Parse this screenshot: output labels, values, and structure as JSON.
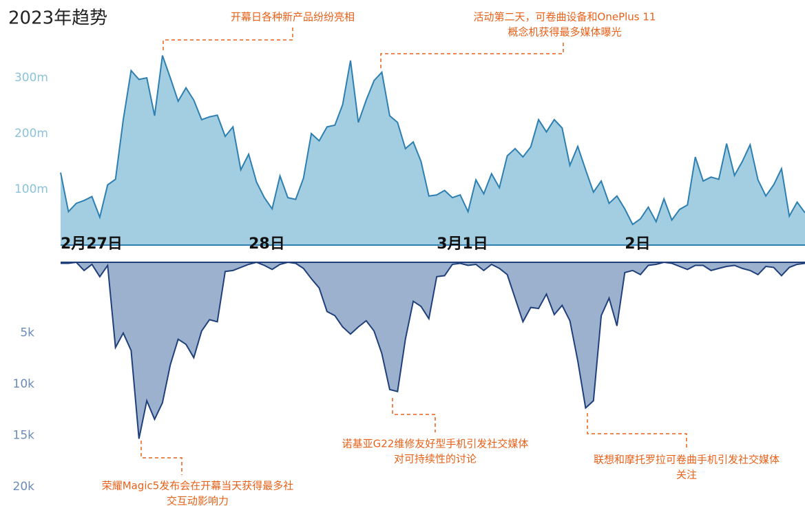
{
  "title": "2023年趋势",
  "chart_data": [
    {
      "type": "area",
      "color": "#a3cde0",
      "line_color": "#2c7fb0",
      "tick_color": "#8cc2da",
      "xlim": [
        0,
        95
      ],
      "xticks": [
        {
          "value": 0,
          "label": "2月27日"
        },
        {
          "value": 24,
          "label": "28日"
        },
        {
          "value": 48,
          "label": "3月1日"
        },
        {
          "value": 72,
          "label": "2日"
        }
      ],
      "ylim": [
        0,
        400
      ],
      "yticks": [
        {
          "value": 100,
          "label": "100m"
        },
        {
          "value": 200,
          "label": "200m"
        },
        {
          "value": 300,
          "label": "300m"
        }
      ],
      "values": [
        130,
        60,
        75,
        80,
        87,
        50,
        108,
        118,
        225,
        313,
        297,
        300,
        232,
        340,
        300,
        258,
        282,
        260,
        225,
        230,
        233,
        195,
        212,
        135,
        163,
        113,
        85,
        65,
        124,
        85,
        82,
        120,
        200,
        187,
        212,
        215,
        252,
        331,
        220,
        260,
        295,
        310,
        232,
        220,
        173,
        185,
        150,
        88,
        90,
        98,
        85,
        90,
        60,
        117,
        92,
        128,
        103,
        160,
        173,
        158,
        176,
        225,
        203,
        225,
        210,
        143,
        177,
        135,
        95,
        115,
        75,
        88,
        65,
        37,
        47,
        68,
        42,
        83,
        45,
        64,
        72,
        158,
        115,
        122,
        118,
        182,
        125,
        150,
        180,
        117,
        88,
        108,
        137,
        52,
        77,
        58
      ]
    },
    {
      "type": "area",
      "inverted": true,
      "color": "#9cb1cd",
      "line_color": "#1f3f7a",
      "tick_color": "#6b8bb9",
      "xlim": [
        0,
        95
      ],
      "ylim": [
        0,
        22
      ],
      "yticks": [
        {
          "value": 5,
          "label": "5k"
        },
        {
          "value": 10,
          "label": "10k"
        },
        {
          "value": 15,
          "label": "15k"
        },
        {
          "value": 20,
          "label": "20k"
        }
      ],
      "values": [
        0.1,
        0.1,
        0,
        0.8,
        0.2,
        1.4,
        0.3,
        8.3,
        6.9,
        8.6,
        17.2,
        13.5,
        15.3,
        13.7,
        10,
        7.5,
        8,
        9.3,
        6.7,
        5.6,
        5.8,
        0.9,
        0.8,
        0.5,
        0.2,
        0,
        0.3,
        0.7,
        0.2,
        0,
        0.1,
        0.6,
        1.6,
        2.5,
        4.8,
        5.2,
        6.3,
        7,
        6.3,
        5.7,
        6.7,
        8.9,
        12.4,
        12.6,
        7.5,
        3.8,
        4.3,
        5.5,
        1.4,
        1.3,
        0.2,
        0.1,
        0.3,
        0.2,
        0.8,
        0.2,
        0.6,
        1.2,
        3.5,
        5.8,
        4.4,
        4.5,
        3.1,
        5.1,
        4.2,
        5.7,
        9.6,
        14.2,
        13.5,
        5.2,
        3.5,
        6.2,
        1,
        0.8,
        1.2,
        0.3,
        0.2,
        0,
        0.1,
        0.4,
        0.7,
        0.3,
        0.3,
        0.8,
        0.6,
        0.4,
        0.3,
        0.6,
        0.8,
        1.2,
        0.4,
        0.5,
        1.3,
        0.5,
        0.2,
        0.1
      ]
    }
  ],
  "annotations": [
    {
      "lines": [
        "开幕日各种新产品纷纷亮相"
      ]
    },
    {
      "lines": [
        "活动第二天，可卷曲设备和OnePlus 11",
        "概念机获得最多媒体曝光"
      ]
    },
    {
      "lines": [
        "诺基亚G22维修友好型手机引发社交媒体",
        "对可持续性的讨论"
      ]
    },
    {
      "lines": [
        "联想和摩托罗拉可卷曲手机引发社交媒体",
        "关注"
      ]
    },
    {
      "lines": [
        "荣耀Magic5发布会在开幕当天获得最多社",
        "交互动影响力"
      ]
    }
  ]
}
